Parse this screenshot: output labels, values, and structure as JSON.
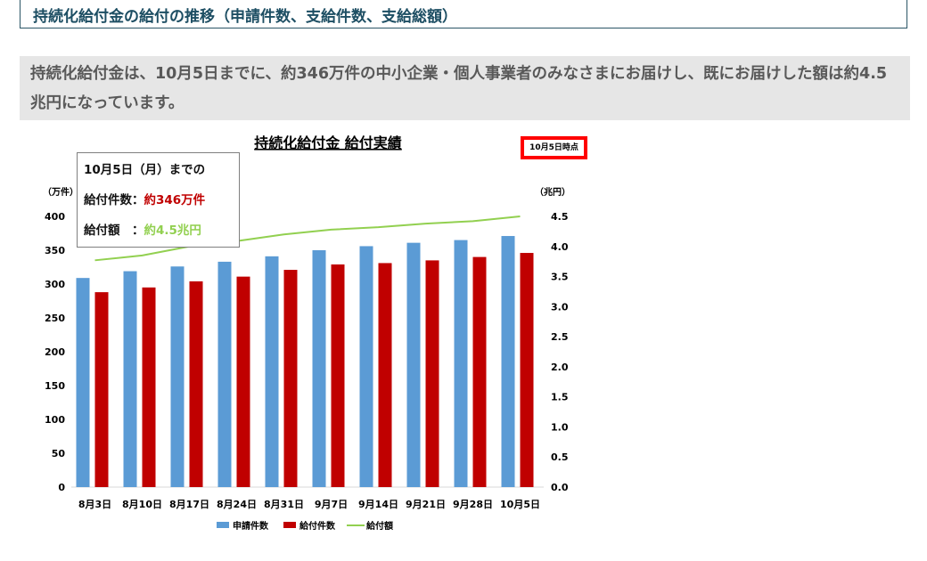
{
  "section_title": "持続化給付金の給付の推移（申請件数、支給件数、支給総額）",
  "intro_text": "持続化給付金は、10月5日までに、約346万件の中小企業・個人事業者のみなさまにお届けし、既にお届けした額は約4.5兆円になっています。",
  "callout": {
    "heading": "10月5日（月）までの",
    "count_label": "給付件数：",
    "count_value": "約346万件",
    "amount_label": "給付額　：",
    "amount_value": "約4.5兆円"
  },
  "date_tag": "10月5日時点",
  "colors": {
    "applications": "#5b9bd5",
    "payments": "#c00000",
    "amount": "#92d050"
  },
  "chart_data": {
    "type": "bar",
    "title": "持続化給付金 給付実績",
    "categories": [
      "8月3日",
      "8月10日",
      "8月17日",
      "8月24日",
      "8月31日",
      "9月7日",
      "9月14日",
      "9月21日",
      "9月28日",
      "10月5日"
    ],
    "series": [
      {
        "name": "申請件数",
        "type": "bar",
        "axis": "left",
        "values": [
          309,
          319,
          326,
          333,
          341,
          350,
          356,
          361,
          365,
          371
        ]
      },
      {
        "name": "給付件数",
        "type": "bar",
        "axis": "left",
        "values": [
          288,
          295,
          304,
          311,
          321,
          329,
          331,
          335,
          340,
          346
        ]
      },
      {
        "name": "給付額",
        "type": "line",
        "axis": "right",
        "values": [
          3.77,
          3.85,
          4.0,
          4.09,
          4.2,
          4.28,
          4.32,
          4.38,
          4.42,
          4.5
        ]
      }
    ],
    "ylabel_left": "（万件）",
    "ylabel_right": "（兆円）",
    "ylim_left": [
      0,
      400
    ],
    "yticks_left": [
      "0",
      "50",
      "100",
      "150",
      "200",
      "250",
      "300",
      "350",
      "400"
    ],
    "ylim_right": [
      0,
      4.5
    ],
    "yticks_right": [
      "0.0",
      "0.5",
      "1.0",
      "1.5",
      "2.0",
      "2.5",
      "3.0",
      "3.5",
      "4.0",
      "4.5"
    ],
    "grid": false,
    "legend_position": "bottom"
  }
}
